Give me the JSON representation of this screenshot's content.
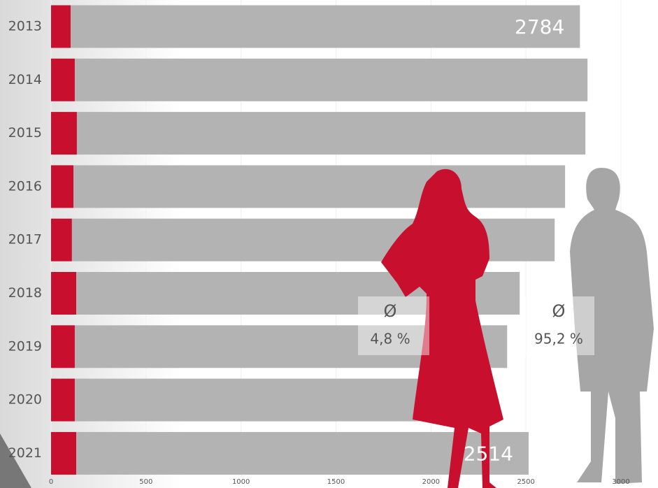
{
  "chart_data": {
    "type": "stacked_barh",
    "categories": [
      "2013",
      "2014",
      "2015",
      "2016",
      "2017",
      "2018",
      "2019",
      "2020",
      "2021"
    ],
    "series": [
      {
        "color": "#c8102e",
        "values": [
          103,
          125,
          136,
          118,
          110,
          133,
          125,
          125,
          133
        ]
      },
      {
        "color": "#b3b3b3",
        "values": [
          2681,
          2699,
          2677,
          2588,
          2541,
          2334,
          2276,
          2202,
          2381
        ]
      }
    ],
    "totals": [
      2784,
      null,
      null,
      null,
      null,
      null,
      null,
      null,
      2514
    ],
    "xlim": [
      0,
      3000
    ],
    "xticks": [
      0,
      500,
      1000,
      1500,
      2000,
      2500,
      3000
    ],
    "grid": true,
    "annotations": [
      {
        "symbol": "Ø",
        "text": "4,8 %"
      },
      {
        "symbol": "Ø",
        "text": "95,2 %"
      }
    ]
  }
}
